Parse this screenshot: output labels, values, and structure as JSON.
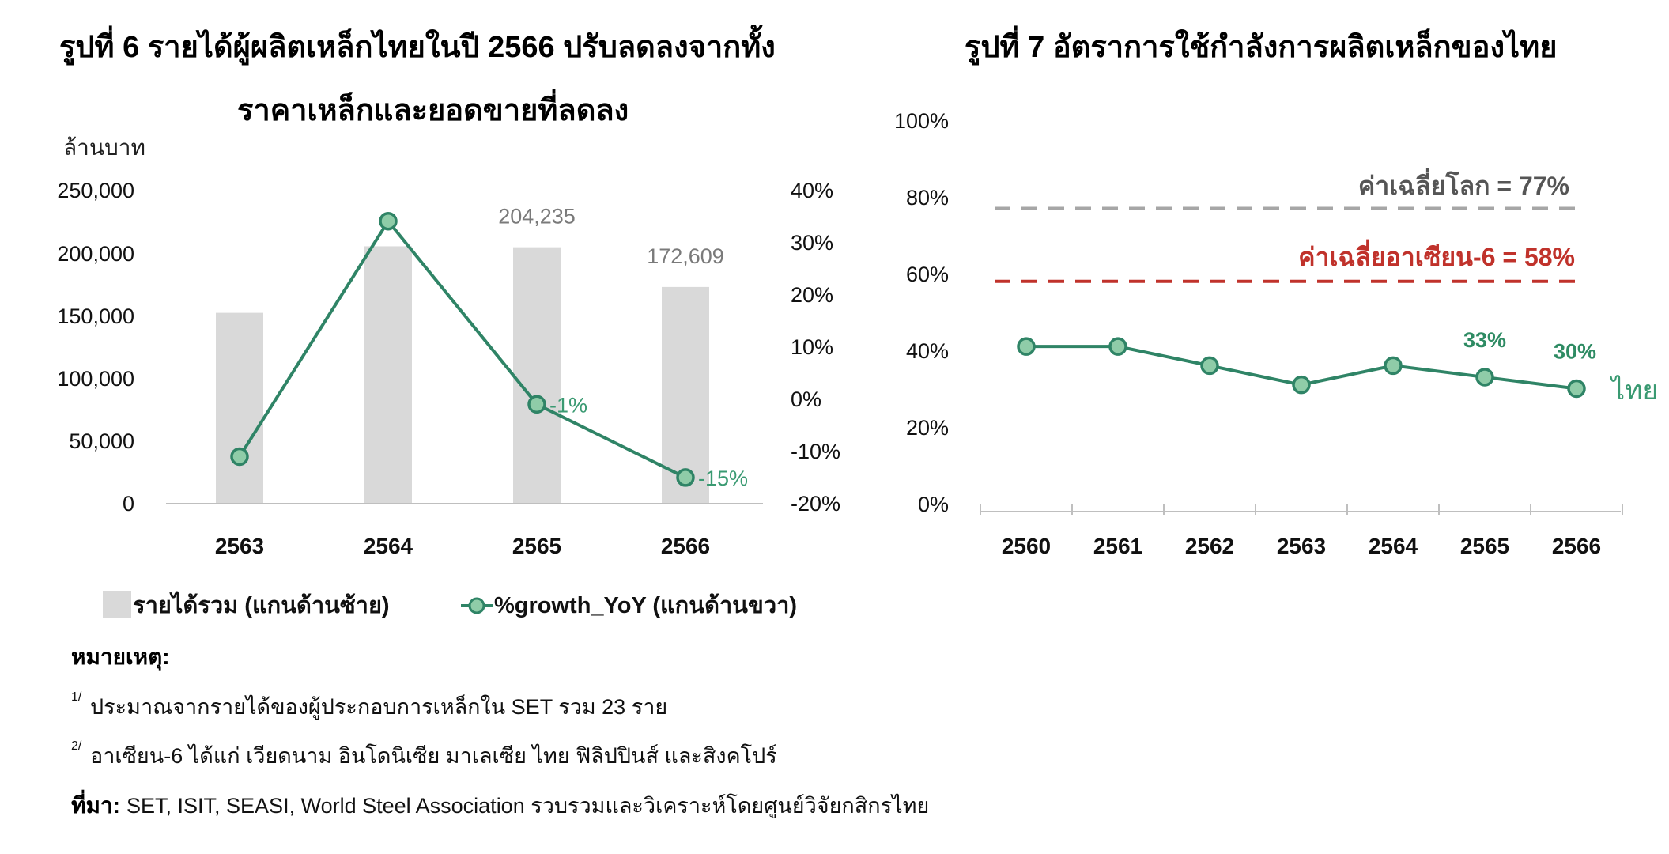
{
  "figure6": {
    "title_line1": "รูปที่ 6 รายได้ผู้ผลิตเหล็กไทยในปี 2566 ปรับลดลงจากทั้ง",
    "title_line2": "ราคาเหล็กและยอดขายที่ลดลง",
    "left_unit": "ล้านบาท",
    "left_ticks": [
      "250,000",
      "200,000",
      "150,000",
      "100,000",
      "50,000",
      "0"
    ],
    "right_ticks": [
      "40%",
      "30%",
      "20%",
      "10%",
      "0%",
      "-10%",
      "-20%"
    ],
    "bar_labels": [
      "",
      "",
      "204,235",
      "172,609"
    ],
    "growth_labels": [
      "",
      "",
      "-1%",
      "-15%"
    ],
    "legend_bar": "รายได้รวม (แกนด้านซ้าย)",
    "legend_line": "%growth_YoY (แกนด้านขวา)"
  },
  "figure7": {
    "title": "รูปที่ 7 อัตราการใช้กำลังการผลิตเหล็กของไทย",
    "y_ticks": [
      "100%",
      "80%",
      "60%",
      "40%",
      "20%",
      "0%"
    ],
    "ref_world_label": "ค่าเฉลี่ยโลก = 77%",
    "ref_asean_label": "ค่าเฉลี่ยอาเซียน-6 = 58%",
    "point_labels": [
      "",
      "",
      "",
      "",
      "",
      "33%",
      "30%"
    ],
    "series_label": "ไทย"
  },
  "notes": {
    "heading": "หมายเหตุ:",
    "note1_marker": "1/",
    "note1": "ประมาณจากรายได้ของผู้ประกอบการเหล็กใน SET รวม 23 ราย",
    "note2_marker": "2/",
    "note2": "อาเซียน-6 ได้แก่ เวียดนาม อินโดนิเซีย มาเลเซีย ไทย ฟิลิปปินส์ และสิงคโปร์",
    "source_label": "ที่มา:",
    "source": "SET, ISIT, SEASI, World Steel Association รวบรวมและวิเคราะห์โดยศูนย์วิจัยกสิกรไทย"
  },
  "colors": {
    "bar": "#d9d9d9",
    "growth_line": "#2f8466",
    "marker_fill": "#8fcca8",
    "world_ref": "#a6a6a6",
    "asean_ref": "#c0322b",
    "axis": "#bfbfbf"
  },
  "chart_data": [
    {
      "type": "bar",
      "title": "รูปที่ 6 รายได้ผู้ผลิตเหล็กไทยในปี 2566 ปรับลดลงจากทั้ง ราคาเหล็กและยอดขายที่ลดลง",
      "categories": [
        "2563",
        "2564",
        "2565",
        "2566"
      ],
      "series": [
        {
          "name": "รายได้รวม (แกนด้านซ้าย)",
          "axis": "left",
          "type": "bar",
          "values": [
            152000,
            205000,
            204235,
            172609
          ]
        },
        {
          "name": "%growth_YoY (แกนด้านขวา)",
          "axis": "right",
          "type": "line",
          "values": [
            -11,
            34,
            -1,
            -15
          ]
        }
      ],
      "ylabel": "ล้านบาท",
      "ylim": [
        0,
        250000
      ],
      "y2lim": [
        -20,
        40
      ],
      "grid": false,
      "legend": "bottom"
    },
    {
      "type": "line",
      "title": "รูปที่ 7 อัตราการใช้กำลังการผลิตเหล็กของไทย",
      "categories": [
        "2560",
        "2561",
        "2562",
        "2563",
        "2564",
        "2565",
        "2566"
      ],
      "series": [
        {
          "name": "ไทย",
          "values": [
            41,
            41,
            36,
            31,
            36,
            33,
            30
          ]
        }
      ],
      "reference_lines": [
        {
          "name": "ค่าเฉลี่ยโลก",
          "value": 77
        },
        {
          "name": "ค่าเฉลี่ยอาเซียน-6",
          "value": 58
        }
      ],
      "ylim": [
        0,
        100
      ],
      "grid": false
    }
  ]
}
